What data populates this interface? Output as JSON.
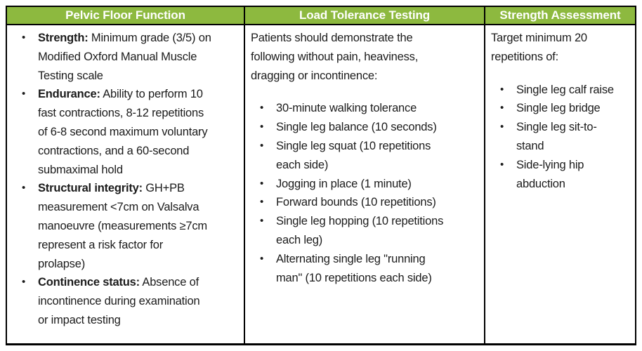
{
  "bullet_char": "•",
  "colors": {
    "header_green": "#8DB93F",
    "header_text": "#ffffff",
    "border": "#000000",
    "body_text": "#1b1b1b"
  },
  "table": {
    "columns": [
      {
        "header": "Pelvic Floor Function",
        "items": [
          {
            "label": "Strength:",
            "text": " Minimum grade (3/5) on\nModified Oxford Manual Muscle\nTesting scale"
          },
          {
            "label": "Endurance:",
            "text": " Ability to perform 10\nfast contractions, 8-12 repetitions\nof 6-8 second maximum voluntary\ncontractions, and a 60-second\nsubmaximal hold"
          },
          {
            "label": "Structural integrity:",
            "text": " GH+PB\nmeasurement <7cm on Valsalva\nmanoeuvre (measurements ≥7cm\nrepresent a risk factor for\nprolapse)"
          },
          {
            "label": "Continence status:",
            "text": " Absence of\nincontinence during examination\nor impact testing"
          }
        ]
      },
      {
        "header": "Load Tolerance Testing",
        "intro": "Patients should demonstrate the\nfollowing without pain, heaviness,\ndragging or incontinence:",
        "items": [
          {
            "text": "30-minute walking tolerance"
          },
          {
            "text": "Single leg balance (10 seconds)"
          },
          {
            "text": "Single leg squat (10 repetitions\neach side)"
          },
          {
            "text": "Jogging in place (1 minute)"
          },
          {
            "text": "Forward bounds (10 repetitions)"
          },
          {
            "text": "Single leg hopping (10 repetitions\neach leg)"
          },
          {
            "text": "Alternating single leg \"running\nman\" (10 repetitions each side)"
          }
        ]
      },
      {
        "header": "Strength Assessment",
        "intro": "Target minimum 20\nrepetitions of:",
        "items": [
          {
            "text": "Single leg calf raise"
          },
          {
            "text": "Single leg bridge"
          },
          {
            "text": "Single leg sit-to-\nstand"
          },
          {
            "text": "Side-lying hip\nabduction"
          }
        ]
      }
    ]
  }
}
